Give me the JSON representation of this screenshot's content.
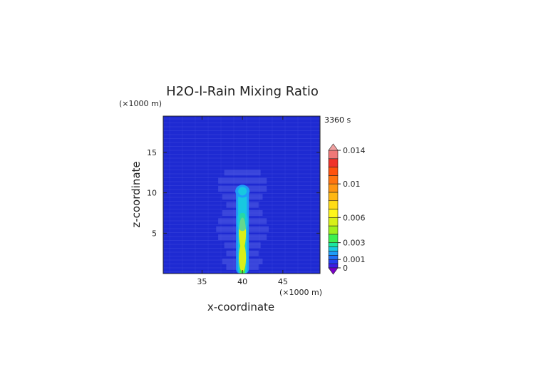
{
  "chart_data": {
    "type": "heatmap",
    "title": "H2O-l-Rain Mixing Ratio",
    "time_label": "3360 s",
    "xlabel": "x-coordinate",
    "ylabel": "z-coordinate",
    "x_unit_label": "(×1000 m)",
    "y_unit_label": "(×1000 m)",
    "xlim": [
      30.2,
      49.6
    ],
    "ylim": [
      0,
      19.5
    ],
    "x_ticks": [
      35,
      40,
      45
    ],
    "y_ticks": [
      5,
      10,
      15
    ],
    "field": {
      "column_center_x": 40,
      "column_top_z": 10.5,
      "max_value": 0.0065,
      "description_points": [
        {
          "x": 40,
          "z": 10,
          "value": 0.002
        },
        {
          "x": 40,
          "z": 8,
          "value": 0.0025
        },
        {
          "x": 40,
          "z": 5,
          "value": 0.0065
        },
        {
          "x": 40,
          "z": 2,
          "value": 0.0065
        }
      ]
    },
    "colorbar": {
      "tick_labels": [
        "0.014",
        "0.01",
        "0.006",
        "0.003",
        "0.001",
        "0"
      ],
      "tick_values": [
        0.014,
        0.01,
        0.006,
        0.003,
        0.001,
        0
      ],
      "levels": [
        0,
        0.0005,
        0.001,
        0.0015,
        0.002,
        0.0025,
        0.003,
        0.004,
        0.005,
        0.006,
        0.007,
        0.008,
        0.009,
        0.01,
        0.011,
        0.012,
        0.013,
        0.014
      ],
      "colors": [
        "#7a00c8",
        "#3c1ee6",
        "#2240f0",
        "#1f6ef5",
        "#1e9cf8",
        "#18c8e0",
        "#19e6a0",
        "#3cf050",
        "#9ef01c",
        "#d8f018",
        "#fff61a",
        "#ffdc16",
        "#ffb814",
        "#ff9612",
        "#ff7410",
        "#ff520e",
        "#f0322a",
        "#f07878"
      ],
      "under_color": "#7a00c8",
      "over_color": "#f0a0a0"
    },
    "background_color": "#1e2ad2"
  }
}
